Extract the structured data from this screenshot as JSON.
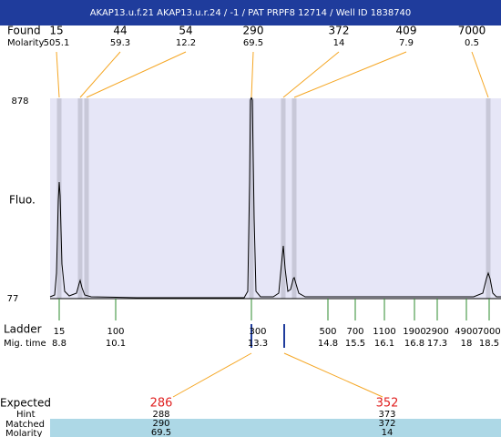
{
  "header": {
    "title": "AKAP13.u.f.21  AKAP13.u.r.24 / -1 / PAT PRPF8 12714 / Well ID 1838740"
  },
  "found": {
    "label": "Found",
    "molarity_label": "Molarity",
    "peaks": [
      {
        "size": 15,
        "molarity": 505.1
      },
      {
        "size": 44,
        "molarity": 59.3
      },
      {
        "size": 54,
        "molarity": 12.2
      },
      {
        "size": 290,
        "molarity": 69.5
      },
      {
        "size": 372,
        "molarity": 14
      },
      {
        "size": 409,
        "molarity": 7.9
      },
      {
        "size": 7000,
        "molarity": 0.5
      }
    ]
  },
  "fluo_axis": {
    "label": "Fluo.",
    "max": 878,
    "min": 77
  },
  "ladder": {
    "label": "Ladder",
    "mig_time_label": "Mig. time",
    "steps": [
      {
        "size": 15,
        "mig_time": 8.8
      },
      {
        "size": 100,
        "mig_time": 10.1
      },
      {
        "size": 300,
        "mig_time": 13.3
      },
      {
        "size": 500,
        "mig_time": 14.8
      },
      {
        "size": 700,
        "mig_time": 15.5
      },
      {
        "size": 1100,
        "mig_time": 16.1
      },
      {
        "size": 1900,
        "mig_time": 16.8
      },
      {
        "size": 2900,
        "mig_time": 17.3
      },
      {
        "size": 4900,
        "mig_time": 18
      },
      {
        "size": 7000,
        "mig_time": 18.5
      }
    ]
  },
  "expected": {
    "label": "Expected",
    "hint_label": "Hint",
    "matched_label": "Matched",
    "molarity_label": "Molarity",
    "items": [
      {
        "expected": 286,
        "hint": 288,
        "matched": 290,
        "molarity": 69.5
      },
      {
        "expected": 352,
        "hint": 373,
        "matched": 372,
        "molarity": 14
      }
    ]
  }
}
